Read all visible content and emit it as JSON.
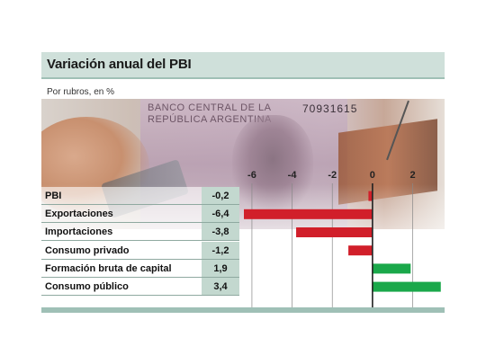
{
  "header": {
    "title": "Variación anual del PBI",
    "subtitle": "Por rubros, en %"
  },
  "photo": {
    "bank_text": "BANCO CENTRAL DE LA\nREPÚBLICA ARGENTINA",
    "serial": "70931615"
  },
  "colors": {
    "negative": "#d11f2a",
    "positive": "#1aa84a",
    "zero_line": "#222222",
    "grid": "#888888",
    "value_cell": "#c3d8cf",
    "title_bar": "#cfe0da"
  },
  "chart_data": {
    "type": "bar",
    "orientation": "horizontal",
    "title": "Variación anual del PBI",
    "subtitle": "Por rubros, en %",
    "categories": [
      "PBI",
      "Exportaciones",
      "Importaciones",
      "Consumo privado",
      "Formación bruta de capital",
      "Consumo público"
    ],
    "values": [
      -0.2,
      -6.4,
      -3.8,
      -1.2,
      1.9,
      3.4
    ],
    "value_labels": [
      "-0,2",
      "-6,4",
      "-3,8",
      "-1,2",
      "1,9",
      "3,4"
    ],
    "xlim": [
      -6.4,
      3.5
    ],
    "xticks": [
      -6,
      -4,
      -2,
      0,
      2
    ],
    "xtick_labels": [
      "-6",
      "-4",
      "-2",
      "0",
      "2"
    ],
    "grid": true
  }
}
